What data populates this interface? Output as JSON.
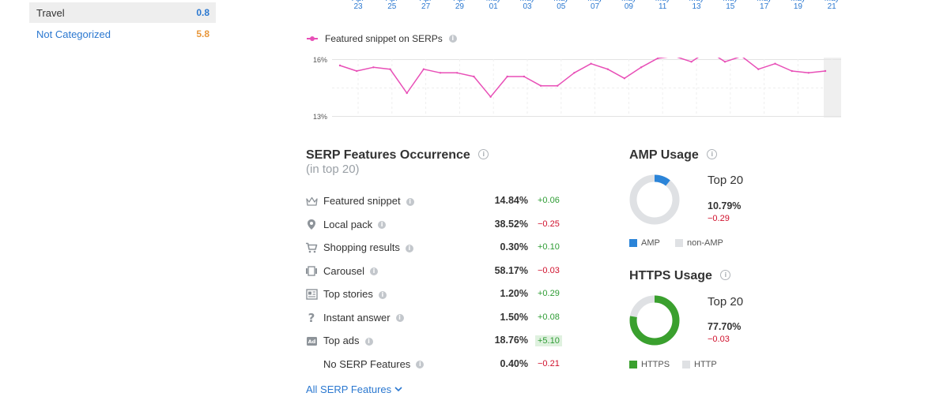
{
  "categories": [
    {
      "label": "Travel",
      "value": "0.8",
      "value_color": "#2b78d0",
      "active": true
    },
    {
      "label": "Not Categorized",
      "value": "5.8",
      "value_color": "#e8973b",
      "active": false
    }
  ],
  "date_axis": [
    {
      "month": "Apr",
      "day": "23"
    },
    {
      "month": "Apr",
      "day": "25"
    },
    {
      "month": "Apr",
      "day": "27"
    },
    {
      "month": "Apr",
      "day": "29"
    },
    {
      "month": "May",
      "day": "01"
    },
    {
      "month": "May",
      "day": "03"
    },
    {
      "month": "May",
      "day": "05"
    },
    {
      "month": "May",
      "day": "07"
    },
    {
      "month": "May",
      "day": "09"
    },
    {
      "month": "May",
      "day": "11"
    },
    {
      "month": "May",
      "day": "13"
    },
    {
      "month": "May",
      "day": "15"
    },
    {
      "month": "May",
      "day": "17"
    },
    {
      "month": "May",
      "day": "19"
    },
    {
      "month": "May",
      "day": "21"
    }
  ],
  "chart_data": {
    "type": "line",
    "series": [
      {
        "name": "Featured snippet on SERPs",
        "color": "#e84fb7",
        "values": [
          15.7,
          15.4,
          15.6,
          15.5,
          14.2,
          15.5,
          15.3,
          15.3,
          15.1,
          14.0,
          15.1,
          15.1,
          14.6,
          14.6,
          15.3,
          15.8,
          15.5,
          15.0,
          15.6,
          16.1,
          16.2,
          15.9,
          16.5,
          15.9,
          16.2,
          15.5,
          15.8,
          15.4,
          15.3,
          15.4
        ]
      }
    ],
    "y_ticks": [
      "16%",
      "13%"
    ],
    "ylim": [
      13,
      16
    ],
    "grid": true
  },
  "serp": {
    "title": "SERP Features Occurrence",
    "subtitle": "(in top 20)",
    "features": [
      {
        "icon": "crown-icon",
        "label": "Featured snippet",
        "pct": "14.84%",
        "delta": "+0.06",
        "trend": "pos",
        "highlight": false
      },
      {
        "icon": "map-pin-icon",
        "label": "Local pack",
        "pct": "38.52%",
        "delta": "−0.25",
        "trend": "neg",
        "highlight": false
      },
      {
        "icon": "cart-icon",
        "label": "Shopping results",
        "pct": "0.30%",
        "delta": "+0.10",
        "trend": "pos",
        "highlight": false
      },
      {
        "icon": "carousel-icon",
        "label": "Carousel",
        "pct": "58.17%",
        "delta": "−0.03",
        "trend": "neg",
        "highlight": false
      },
      {
        "icon": "news-icon",
        "label": "Top stories",
        "pct": "1.20%",
        "delta": "+0.29",
        "trend": "pos",
        "highlight": false
      },
      {
        "icon": "question-icon",
        "label": "Instant answer",
        "pct": "1.50%",
        "delta": "+0.08",
        "trend": "pos",
        "highlight": false
      },
      {
        "icon": "ad-icon",
        "label": "Top ads",
        "pct": "18.76%",
        "delta": "+5.10",
        "trend": "pos",
        "highlight": true
      },
      {
        "icon": "",
        "label": "No SERP Features",
        "pct": "0.40%",
        "delta": "−0.21",
        "trend": "neg",
        "highlight": false
      }
    ],
    "all_link": "All SERP Features"
  },
  "amp": {
    "title": "AMP Usage",
    "top_label": "Top 20",
    "value": "10.79%",
    "fraction": 0.1079,
    "delta": "−0.29",
    "color": "#2b84d8",
    "rest_color": "#dfe1e4",
    "legend": [
      "AMP",
      "non-AMP"
    ]
  },
  "https": {
    "title": "HTTPS Usage",
    "top_label": "Top 20",
    "value": "77.70%",
    "fraction": 0.777,
    "delta": "−0.03",
    "color": "#3aa02e",
    "rest_color": "#dfe1e4",
    "legend": [
      "HTTPS",
      "HTTP"
    ]
  }
}
